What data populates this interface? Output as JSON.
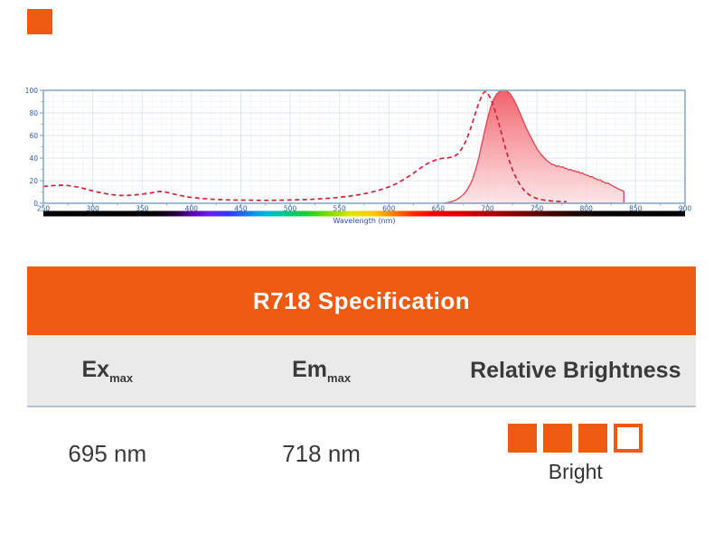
{
  "brand": {
    "square_color": "#EE5A0F"
  },
  "chart": {
    "xlabel": "Wavelength (nm)",
    "x_ticks": [
      250,
      300,
      350,
      400,
      450,
      500,
      550,
      600,
      650,
      700,
      750,
      800,
      850,
      900
    ],
    "y_ticks": [
      0,
      20,
      40,
      60,
      80,
      100
    ],
    "axis_color": "#88ABCB",
    "tick_label_color": "#2B5BA6",
    "xlabel_color": "#2B50A5",
    "grid_major_color": "#DCE5EF",
    "grid_minor_color": "#EEF2F7",
    "spectrum_bar_stops": [
      {
        "o": 0,
        "c": "#000000"
      },
      {
        "o": 0.175,
        "c": "#020002"
      },
      {
        "o": 0.205,
        "c": "#24003e"
      },
      {
        "o": 0.235,
        "c": "#6000b8"
      },
      {
        "o": 0.262,
        "c": "#6426e8"
      },
      {
        "o": 0.288,
        "c": "#3038f2"
      },
      {
        "o": 0.315,
        "c": "#1d74e8"
      },
      {
        "o": 0.345,
        "c": "#00b2e0"
      },
      {
        "o": 0.375,
        "c": "#00c88c"
      },
      {
        "o": 0.41,
        "c": "#1eca31"
      },
      {
        "o": 0.445,
        "c": "#7edc00"
      },
      {
        "o": 0.48,
        "c": "#e0e400"
      },
      {
        "o": 0.515,
        "c": "#ffc800"
      },
      {
        "o": 0.545,
        "c": "#ff7d00"
      },
      {
        "o": 0.575,
        "c": "#ff3000"
      },
      {
        "o": 0.61,
        "c": "#f00000"
      },
      {
        "o": 0.66,
        "c": "#d40000"
      },
      {
        "o": 0.72,
        "c": "#9b0000"
      },
      {
        "o": 0.78,
        "c": "#520000"
      },
      {
        "o": 0.84,
        "c": "#170000"
      },
      {
        "o": 0.9,
        "c": "#000000"
      },
      {
        "o": 1,
        "c": "#000000"
      }
    ]
  },
  "chart_data": {
    "type": "line",
    "title": "",
    "xlabel": "Wavelength (nm)",
    "ylabel": "",
    "xlim": [
      250,
      900
    ],
    "ylim": [
      0,
      100
    ],
    "grid": true,
    "legend": "none",
    "series": [
      {
        "name": "Excitation",
        "style": "dashed",
        "color": "#D02438",
        "points": [
          [
            250,
            15
          ],
          [
            256,
            15.4
          ],
          [
            262,
            15.8
          ],
          [
            268,
            16
          ],
          [
            274,
            15.8
          ],
          [
            280,
            15.1
          ],
          [
            286,
            14.1
          ],
          [
            292,
            12.8
          ],
          [
            298,
            11.4
          ],
          [
            304,
            10.1
          ],
          [
            310,
            9
          ],
          [
            316,
            8.1
          ],
          [
            322,
            7.4
          ],
          [
            328,
            7
          ],
          [
            334,
            6.9
          ],
          [
            340,
            7.2
          ],
          [
            346,
            7.7
          ],
          [
            352,
            8.3
          ],
          [
            358,
            9
          ],
          [
            364,
            10
          ],
          [
            368,
            10.5
          ],
          [
            372,
            10.2
          ],
          [
            376,
            9.5
          ],
          [
            380,
            8.6
          ],
          [
            386,
            7.4
          ],
          [
            392,
            6.3
          ],
          [
            398,
            5.4
          ],
          [
            404,
            4.8
          ],
          [
            412,
            4.1
          ],
          [
            420,
            3.6
          ],
          [
            430,
            3.2
          ],
          [
            440,
            2.9
          ],
          [
            450,
            2.8
          ],
          [
            460,
            2.7
          ],
          [
            470,
            2.6
          ],
          [
            480,
            2.6
          ],
          [
            490,
            2.7
          ],
          [
            500,
            2.9
          ],
          [
            510,
            3.1
          ],
          [
            520,
            3.4
          ],
          [
            530,
            3.9
          ],
          [
            540,
            4.5
          ],
          [
            550,
            5.3
          ],
          [
            560,
            6.3
          ],
          [
            570,
            7.6
          ],
          [
            580,
            9.3
          ],
          [
            590,
            11.5
          ],
          [
            600,
            14.5
          ],
          [
            608,
            17.5
          ],
          [
            616,
            21.5
          ],
          [
            624,
            26
          ],
          [
            630,
            30
          ],
          [
            636,
            33.5
          ],
          [
            642,
            36.5
          ],
          [
            648,
            38.5
          ],
          [
            654,
            39.8
          ],
          [
            660,
            40.2
          ],
          [
            666,
            41.4
          ],
          [
            670,
            43.8
          ],
          [
            674,
            48.5
          ],
          [
            678,
            55
          ],
          [
            682,
            64
          ],
          [
            686,
            75
          ],
          [
            690,
            86
          ],
          [
            693,
            93
          ],
          [
            696,
            98
          ],
          [
            698,
            99
          ],
          [
            700,
            97.5
          ],
          [
            703,
            93
          ],
          [
            706,
            86
          ],
          [
            710,
            75
          ],
          [
            714,
            62
          ],
          [
            718,
            49
          ],
          [
            722,
            37.5
          ],
          [
            726,
            28
          ],
          [
            730,
            20.5
          ],
          [
            734,
            14.8
          ],
          [
            738,
            10.5
          ],
          [
            742,
            7.6
          ],
          [
            746,
            5.6
          ],
          [
            750,
            4.2
          ],
          [
            755,
            3.1
          ],
          [
            760,
            2.4
          ],
          [
            765,
            2
          ],
          [
            770,
            1.7
          ],
          [
            775,
            1.5
          ],
          [
            780,
            1.4
          ]
        ]
      },
      {
        "name": "Emission",
        "style": "filled-area",
        "color": "#E34250",
        "fill_top": "#F15A64",
        "fill_mid": "#F79AA1",
        "fill_bottom": "#FDE2E4",
        "points": [
          [
            655,
            0
          ],
          [
            658,
            0.4
          ],
          [
            661,
            0.9
          ],
          [
            664,
            1.6
          ],
          [
            667,
            2.6
          ],
          [
            670,
            4
          ],
          [
            673,
            5.8
          ],
          [
            676,
            8.2
          ],
          [
            679,
            11.5
          ],
          [
            682,
            16
          ],
          [
            685,
            22
          ],
          [
            688,
            30
          ],
          [
            691,
            40
          ],
          [
            694,
            52
          ],
          [
            697,
            64
          ],
          [
            700,
            75
          ],
          [
            703,
            85
          ],
          [
            706,
            92
          ],
          [
            709,
            96.5
          ],
          [
            712,
            99
          ],
          [
            715,
            100
          ],
          [
            718,
            100
          ],
          [
            721,
            98.5
          ],
          [
            724,
            95.5
          ],
          [
            727,
            91
          ],
          [
            730,
            85.5
          ],
          [
            733,
            79.5
          ],
          [
            736,
            73
          ],
          [
            739,
            67
          ],
          [
            742,
            61.5
          ],
          [
            745,
            56.5
          ],
          [
            748,
            51.5
          ],
          [
            751,
            47
          ],
          [
            754,
            43.5
          ],
          [
            757,
            40.5
          ],
          [
            760,
            38
          ],
          [
            762,
            36.5
          ],
          [
            764,
            35.2
          ],
          [
            766,
            34.2
          ],
          [
            768,
            33.9
          ],
          [
            770,
            32.6
          ],
          [
            772,
            33.1
          ],
          [
            774,
            31.9
          ],
          [
            776,
            32.4
          ],
          [
            778,
            31.1
          ],
          [
            780,
            30.8
          ],
          [
            782,
            29.6
          ],
          [
            784,
            30
          ],
          [
            786,
            28.7
          ],
          [
            788,
            29
          ],
          [
            790,
            27.7
          ],
          [
            792,
            28
          ],
          [
            794,
            26.6
          ],
          [
            796,
            27
          ],
          [
            798,
            25.5
          ],
          [
            800,
            25.1
          ],
          [
            802,
            24.4
          ],
          [
            804,
            23.3
          ],
          [
            806,
            23.7
          ],
          [
            808,
            22.1
          ],
          [
            810,
            21.6
          ],
          [
            812,
            20.5
          ],
          [
            814,
            20.9
          ],
          [
            816,
            19.3
          ],
          [
            818,
            18.7
          ],
          [
            820,
            17.7
          ],
          [
            822,
            18
          ],
          [
            824,
            16.5
          ],
          [
            826,
            15.7
          ],
          [
            828,
            14.7
          ],
          [
            830,
            13.9
          ],
          [
            832,
            12.9
          ],
          [
            834,
            12.1
          ],
          [
            836,
            11.3
          ],
          [
            838,
            10.6
          ]
        ]
      }
    ]
  },
  "table": {
    "title": "R718 Specification",
    "header_bg": "#EE5A0F",
    "columns": {
      "ex": {
        "base": "Ex",
        "sub": "max"
      },
      "em": {
        "base": "Em",
        "sub": "max"
      },
      "brightness": {
        "label": "Relative Brightness"
      }
    },
    "values": {
      "ex": "695 nm",
      "em": "718 nm"
    },
    "brightness": {
      "filled": 3,
      "total": 4,
      "label": "Bright",
      "color": "#EE5A0F"
    }
  }
}
